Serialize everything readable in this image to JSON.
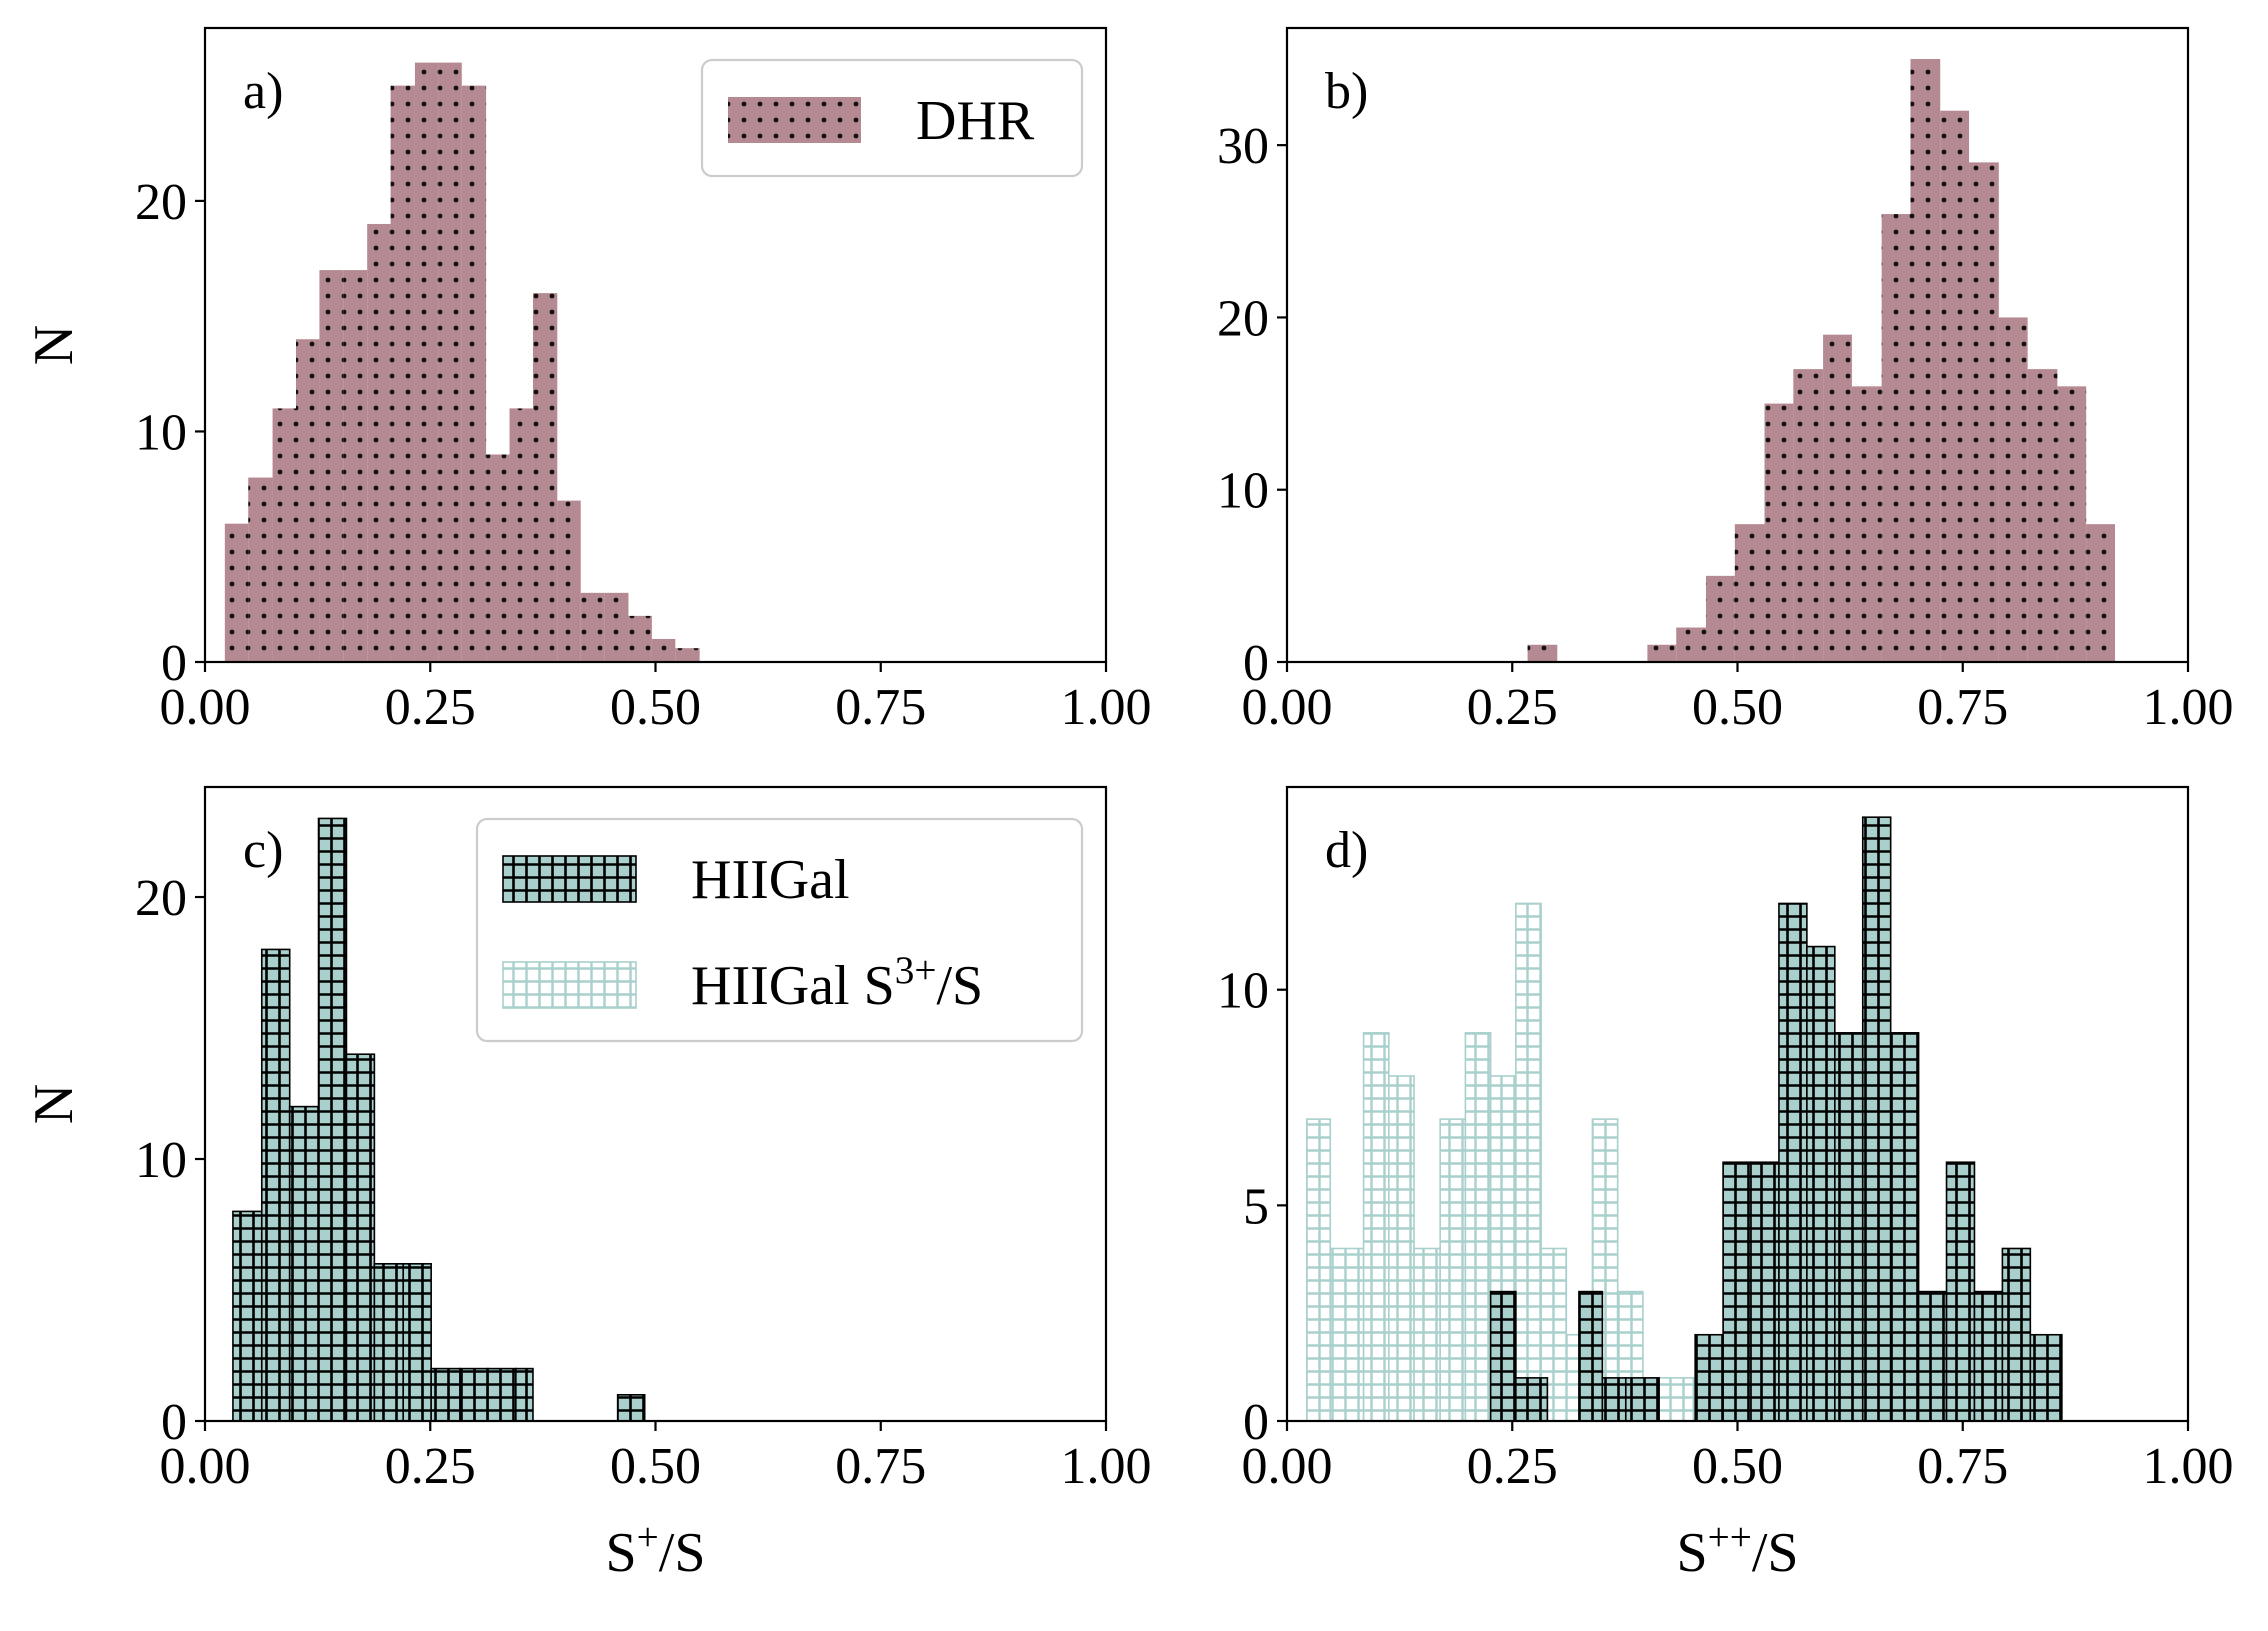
{
  "colors": {
    "dhr_fill": "#b58991",
    "hiigal_fill": "#a9d0cc",
    "hiigal_hatch": "#000000",
    "s3_edge": "#a9d0cc"
  },
  "chart_data": [
    {
      "type": "bar",
      "panel_label": "a)",
      "xlabel": "",
      "ylabel": "N",
      "xlim": [
        0,
        1
      ],
      "ylim": [
        0,
        27.5
      ],
      "xticks": [
        "0.00",
        "0.25",
        "0.50",
        "0.75",
        "1.00"
      ],
      "yticks": [
        {
          "value": 0,
          "label": "0"
        },
        {
          "value": 10,
          "label": "10"
        },
        {
          "value": 20,
          "label": "20"
        }
      ],
      "legend": [
        "DHR"
      ],
      "legend_position": "top-right",
      "series": [
        {
          "name": "DHR",
          "style": "dots",
          "bins": [
            [
              0.022,
              0.048,
              6
            ],
            [
              0.048,
              0.075,
              8
            ],
            [
              0.075,
              0.101,
              11
            ],
            [
              0.101,
              0.127,
              14
            ],
            [
              0.127,
              0.154,
              17
            ],
            [
              0.154,
              0.18,
              17
            ],
            [
              0.18,
              0.206,
              19
            ],
            [
              0.206,
              0.233,
              25
            ],
            [
              0.233,
              0.259,
              26
            ],
            [
              0.259,
              0.285,
              26
            ],
            [
              0.285,
              0.312,
              25
            ],
            [
              0.312,
              0.338,
              9
            ],
            [
              0.338,
              0.364,
              11
            ],
            [
              0.364,
              0.391,
              16
            ],
            [
              0.391,
              0.417,
              7
            ],
            [
              0.417,
              0.443,
              3
            ],
            [
              0.443,
              0.47,
              3
            ],
            [
              0.47,
              0.496,
              2
            ],
            [
              0.496,
              0.522,
              1
            ],
            [
              0.522,
              0.549,
              0.6
            ]
          ]
        }
      ]
    },
    {
      "type": "bar",
      "panel_label": "b)",
      "xlabel": "",
      "ylabel": "",
      "xlim": [
        0,
        1
      ],
      "ylim": [
        0,
        36.8
      ],
      "xticks": [
        "0.00",
        "0.25",
        "0.50",
        "0.75",
        "1.00"
      ],
      "yticks": [
        {
          "value": 0,
          "label": "0"
        },
        {
          "value": 10,
          "label": "10"
        },
        {
          "value": 20,
          "label": "20"
        },
        {
          "value": 30,
          "label": "30"
        }
      ],
      "series": [
        {
          "name": "DHR",
          "style": "dots",
          "bins": [
            [
              0.267,
              0.3,
              1
            ],
            [
              0.4,
              0.432,
              1
            ],
            [
              0.432,
              0.465,
              2
            ],
            [
              0.465,
              0.497,
              5
            ],
            [
              0.497,
              0.53,
              8
            ],
            [
              0.53,
              0.562,
              15
            ],
            [
              0.562,
              0.595,
              17
            ],
            [
              0.595,
              0.627,
              19
            ],
            [
              0.627,
              0.66,
              16
            ],
            [
              0.66,
              0.692,
              26
            ],
            [
              0.692,
              0.725,
              35
            ],
            [
              0.725,
              0.757,
              32
            ],
            [
              0.757,
              0.79,
              29
            ],
            [
              0.79,
              0.822,
              20
            ],
            [
              0.822,
              0.855,
              17
            ],
            [
              0.855,
              0.887,
              16
            ],
            [
              0.887,
              0.919,
              8
            ]
          ]
        }
      ]
    },
    {
      "type": "bar",
      "panel_label": "c)",
      "xlabel": "S⁺/S",
      "ylabel": "N",
      "xlim": [
        0,
        1
      ],
      "ylim": [
        0,
        24.2
      ],
      "xticks": [
        "0.00",
        "0.25",
        "0.50",
        "0.75",
        "1.00"
      ],
      "yticks": [
        {
          "value": 0,
          "label": "0"
        },
        {
          "value": 10,
          "label": "10"
        },
        {
          "value": 20,
          "label": "20"
        }
      ],
      "legend": [
        "HIIGal",
        "HIIGal S³⁺/S"
      ],
      "legend_position": "top-right",
      "series": [
        {
          "name": "HIIGal",
          "style": "grid-filled",
          "bins": [
            [
              0.031,
              0.063,
              8
            ],
            [
              0.063,
              0.094,
              18
            ],
            [
              0.094,
              0.126,
              12
            ],
            [
              0.126,
              0.157,
              23
            ],
            [
              0.157,
              0.188,
              14
            ],
            [
              0.188,
              0.22,
              6
            ],
            [
              0.22,
              0.251,
              6
            ],
            [
              0.251,
              0.283,
              2
            ],
            [
              0.283,
              0.314,
              2
            ],
            [
              0.314,
              0.345,
              2
            ],
            [
              0.345,
              0.364,
              2
            ],
            [
              0.458,
              0.488,
              1
            ]
          ]
        }
      ]
    },
    {
      "type": "bar",
      "panel_label": "d)",
      "xlabel": "S⁺⁺/S",
      "ylabel": "",
      "xlim": [
        0,
        1
      ],
      "ylim": [
        0,
        14.7
      ],
      "xticks": [
        "0.00",
        "0.25",
        "0.50",
        "0.75",
        "1.00"
      ],
      "yticks": [
        {
          "value": 0,
          "label": "0"
        },
        {
          "value": 5,
          "label": "5"
        },
        {
          "value": 10,
          "label": "10"
        }
      ],
      "series": [
        {
          "name": "HIIGal S³⁺/S",
          "style": "grid-outline",
          "bins": [
            [
              0.022,
              0.048,
              7
            ],
            [
              0.048,
              0.085,
              4
            ],
            [
              0.085,
              0.113,
              9
            ],
            [
              0.113,
              0.141,
              8
            ],
            [
              0.141,
              0.17,
              4
            ],
            [
              0.17,
              0.198,
              7
            ],
            [
              0.198,
              0.226,
              9
            ],
            [
              0.226,
              0.254,
              8
            ],
            [
              0.254,
              0.282,
              12
            ],
            [
              0.282,
              0.31,
              4
            ],
            [
              0.31,
              0.339,
              2
            ],
            [
              0.339,
              0.367,
              7
            ],
            [
              0.367,
              0.395,
              3
            ],
            [
              0.395,
              0.451,
              1
            ],
            [
              0.451,
              0.592,
              1
            ],
            [
              0.592,
              0.733,
              1
            ]
          ]
        },
        {
          "name": "HIIGal",
          "style": "grid-filled",
          "bins": [
            [
              0.226,
              0.254,
              3
            ],
            [
              0.254,
              0.289,
              1
            ],
            [
              0.324,
              0.35,
              3
            ],
            [
              0.35,
              0.376,
              1
            ],
            [
              0.376,
              0.413,
              1
            ],
            [
              0.453,
              0.484,
              2
            ],
            [
              0.484,
              0.515,
              6
            ],
            [
              0.515,
              0.546,
              6
            ],
            [
              0.546,
              0.577,
              12
            ],
            [
              0.577,
              0.608,
              11
            ],
            [
              0.608,
              0.639,
              9
            ],
            [
              0.639,
              0.67,
              14
            ],
            [
              0.67,
              0.701,
              9
            ],
            [
              0.701,
              0.732,
              3
            ],
            [
              0.732,
              0.763,
              6
            ],
            [
              0.763,
              0.794,
              3
            ],
            [
              0.794,
              0.825,
              4
            ],
            [
              0.825,
              0.86,
              2
            ]
          ]
        }
      ]
    }
  ]
}
